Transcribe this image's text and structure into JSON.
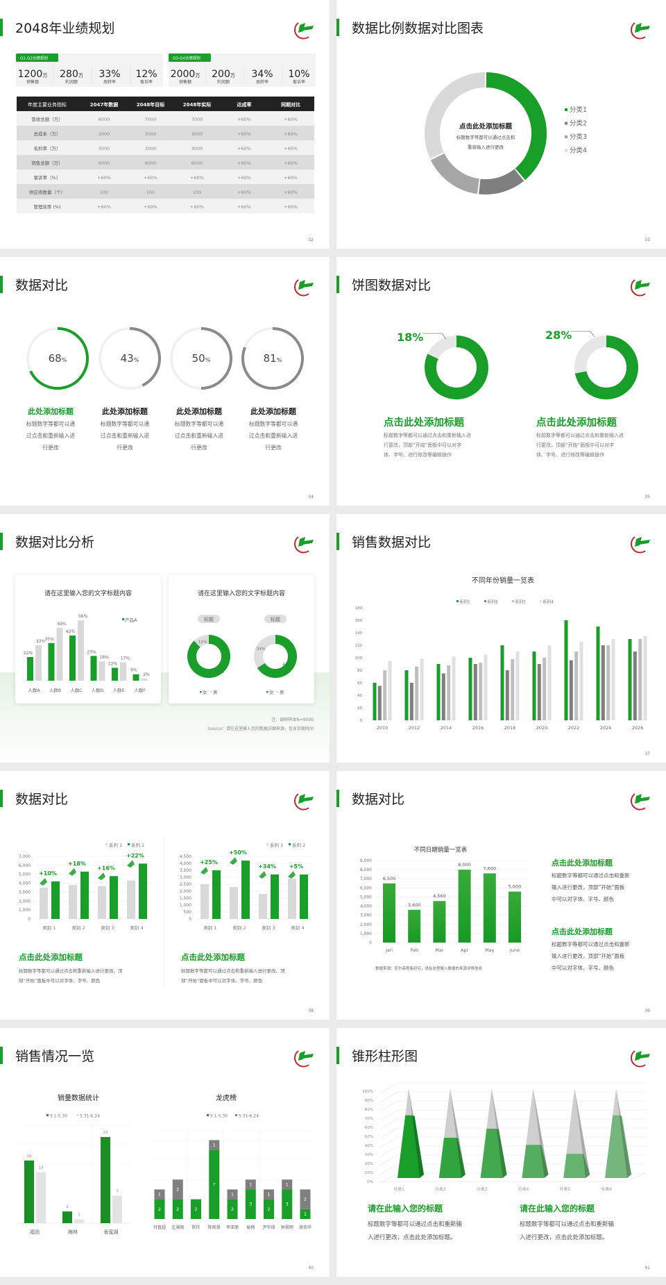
{
  "colors": {
    "green": "#1a9e2a",
    "dark_gray": "#7f7f7f",
    "mid_gray": "#a6a6a6",
    "light_gray": "#d9d9d9",
    "logo_red": "#c0272d",
    "table_header": "#222222"
  },
  "s32": {
    "title": "2048年业绩规划",
    "page": "32",
    "kpi_groups": [
      {
        "tag": "Q1-Q2业绩规划",
        "items": [
          {
            "value": "1200",
            "unit": "万",
            "label": "销售额"
          },
          {
            "value": "280",
            "unit": "万",
            "label": "利润额"
          },
          {
            "value": "33%",
            "unit": "",
            "label": "周转率"
          },
          {
            "value": "12%",
            "unit": "",
            "label": "客诉率"
          }
        ]
      },
      {
        "tag": "Q3-Q4业绩规划",
        "items": [
          {
            "value": "2000",
            "unit": "万",
            "label": "销售额"
          },
          {
            "value": "200",
            "unit": "万",
            "label": "利润额"
          },
          {
            "value": "34%",
            "unit": "",
            "label": "周转率"
          },
          {
            "value": "10%",
            "unit": "",
            "label": "客诉率"
          }
        ]
      }
    ],
    "table": {
      "headers": [
        "年度主要业务指标",
        "2047年数据",
        "2048年目标",
        "2048年实际",
        "达成率",
        "同期对比"
      ],
      "rows": [
        [
          "营收总额（万）",
          "6000",
          "7000",
          "7000",
          "+60%",
          "+60%"
        ],
        [
          "总成本（万）",
          "3000",
          "3000",
          "3000",
          "+60%",
          "+60%"
        ],
        [
          "毛利率（万）",
          "3000",
          "3000",
          "3000",
          "+60%",
          "+60%"
        ],
        [
          "销售总额（万）",
          "6000",
          "6000",
          "6000",
          "+60%",
          "+60%"
        ],
        [
          "客诉率（%）",
          "+60%",
          "+60%",
          "+60%",
          "+60%",
          "+60%"
        ],
        [
          "供应商数量（个）",
          "100",
          "100",
          "100",
          "+60%",
          "+60%"
        ],
        [
          "管理效率 (%)",
          "+60%",
          "+60%",
          "+60%",
          "+60%",
          "+60%"
        ]
      ]
    }
  },
  "s33": {
    "title": "数据比例数据对比图表",
    "page": "33",
    "center_title": "点击此处添加标题",
    "center_lines": [
      "标题数字等都可以通过点击和",
      "重新输入进行更改"
    ],
    "chart_data": {
      "type": "pie",
      "donut": true,
      "categories": [
        "分类1",
        "分类2",
        "分类3",
        "分类4"
      ],
      "values": [
        39,
        13,
        16,
        32
      ],
      "legend": "right"
    }
  },
  "s34": {
    "title": "数据对比",
    "page": "34",
    "items": [
      {
        "value": "68",
        "unit": "%",
        "percent": 68,
        "title": "此处添加标题",
        "lines": [
          "标题数字等都可以通",
          "过点击和重新输入进",
          "行更改"
        ],
        "highlight": true
      },
      {
        "value": "43",
        "unit": "%",
        "percent": 43,
        "title": "此处添加标题",
        "lines": [
          "标题数字等都可以通",
          "过点击和重新输入进",
          "行更改"
        ],
        "highlight": false
      },
      {
        "value": "50",
        "unit": "%",
        "percent": 50,
        "title": "此处添加标题",
        "lines": [
          "标题数字等都可以通",
          "过点击和重新输入进",
          "行更改"
        ],
        "highlight": false
      },
      {
        "value": "81",
        "unit": "%",
        "percent": 81,
        "title": "此处添加标题",
        "lines": [
          "标题数字等都可以通",
          "过点击和重新输入进",
          "行更改"
        ],
        "highlight": false
      }
    ]
  },
  "s35": {
    "title": "饼图数据对比",
    "page": "35",
    "items": [
      {
        "label": "18%",
        "percent": 18,
        "title": "点击此处添加标题",
        "lines": [
          "标题数字等都可以通过点击和重新输入进",
          "行更改，顶部“开始”面板中可以对字",
          "体、字号、进行修改等编辑操作"
        ]
      },
      {
        "label": "28%",
        "percent": 28,
        "title": "点击此处添加标题",
        "lines": [
          "标题数字等都可以通过点击和重新输入进",
          "行更改，顶部“开始”面板中可以对字",
          "体、字号、进行修改等编辑操作"
        ]
      }
    ]
  },
  "s36": {
    "title": "数据对比分析",
    "page": "36",
    "card_titles": [
      "请在这里输入您的文字标题内容",
      "请在这里输入您的文字标题内容"
    ],
    "chart_data": [
      {
        "type": "bar",
        "categories": [
          "人群A",
          "人群B",
          "人群C",
          "人群D",
          "人群E",
          "人群F"
        ],
        "series": [
          {
            "name": "产品A",
            "values": [
              22,
              35,
              42,
              23,
              12,
              6
            ],
            "labels": [
              "22%",
              "35%",
              "42%",
              "23%",
              "12%",
              "6%"
            ]
          },
          {
            "values": [
              33,
              49,
              56,
              18,
              17,
              2
            ],
            "labels": [
              "33%",
              "49%",
              "56%",
              "18%",
              "17%",
              "2%"
            ]
          }
        ]
      },
      {
        "type": "pie",
        "donut": true,
        "pill": "标题",
        "categories": [
          "女",
          "男"
        ],
        "values": [
          88,
          12
        ],
        "labels": [
          "88%",
          "12%"
        ]
      },
      {
        "type": "pie",
        "donut": true,
        "pill": "标题",
        "categories": [
          "女",
          "男"
        ],
        "values": [
          66,
          34
        ],
        "labels": [
          "66%",
          "34%"
        ]
      }
    ],
    "note": "注：调研样本N=9000",
    "source": "Source：请在这里输入您的数据详细来源，包含日期时间"
  },
  "s37": {
    "title": "销售数据对比",
    "page": "37",
    "chart_data": {
      "type": "bar",
      "title": "不同年份销量一览表",
      "categories": [
        "2010",
        "2012",
        "2014",
        "2016",
        "2018",
        "2020",
        "2022",
        "2024",
        "2026"
      ],
      "series": [
        {
          "name": "系列1",
          "values": [
            60,
            80,
            90,
            100,
            120,
            110,
            160,
            150,
            130
          ]
        },
        {
          "name": "系列2",
          "values": [
            55,
            60,
            75,
            90,
            80,
            90,
            96,
            120,
            110
          ]
        },
        {
          "name": "系列3",
          "values": [
            80,
            86,
            88,
            92,
            98,
            100,
            110,
            120,
            130
          ]
        },
        {
          "name": "系列4",
          "values": [
            95,
            99,
            102,
            105,
            110,
            120,
            126,
            130,
            135
          ]
        }
      ],
      "ylim": [
        0,
        180
      ],
      "yticks": [
        "0",
        "20",
        "40",
        "60",
        "80",
        "100",
        "120",
        "140",
        "160",
        "180"
      ],
      "legend": "top",
      "grid": false
    }
  },
  "s38": {
    "title": "数据对比",
    "page": "38",
    "chart_data": [
      {
        "type": "bar",
        "categories": [
          "类别 1",
          "类别 2",
          "类别 3",
          "类别 4"
        ],
        "series": [
          {
            "name": "系列 1",
            "values": [
              3500,
              3800,
              3700,
              4300
            ]
          },
          {
            "name": "系列 2",
            "values": [
              4200,
              5300,
              4800,
              6200
            ]
          }
        ],
        "growth_labels": [
          "+10%",
          "+18%",
          "+16%",
          "+22%"
        ],
        "ylim": [
          0,
          7000
        ],
        "yticks": [
          "0",
          "1,000",
          "2,000",
          "3,000",
          "4,000",
          "5,000",
          "6,000",
          "7,000"
        ],
        "legend": "top-right"
      },
      {
        "type": "bar",
        "categories": [
          "类别 1",
          "类别 2",
          "类别 3",
          "类别 4"
        ],
        "series": [
          {
            "name": "系列 1",
            "values": [
              2500,
              2300,
              1800,
              2900
            ]
          },
          {
            "name": "系列 2",
            "values": [
              3500,
              4200,
              3200,
              3200
            ]
          }
        ],
        "growth_labels": [
          "+25%",
          "+50%",
          "+34%",
          "+5%"
        ],
        "ylim": [
          0,
          4500
        ],
        "yticks": [
          "0",
          "500",
          "1,000",
          "1,500",
          "2,000",
          "2,500",
          "3,000",
          "3,500",
          "4,000",
          "4,500"
        ],
        "legend": "top-right"
      }
    ],
    "blocks": [
      {
        "title": "点击此处添加标题",
        "lines": [
          "标题数字等都可以通过点击和重新输入进行更改，顶",
          "部“开始”面板中可以对字体、字号、颜色"
        ]
      },
      {
        "title": "点击此处添加标题",
        "lines": [
          "标题数字等都可以通过点击和重新输入进行更改，顶",
          "部“开始”面板中可以对字体、字号、颜色"
        ]
      }
    ]
  },
  "s39": {
    "title": "数据对比",
    "page": "39",
    "chart_data": {
      "type": "bar",
      "title": "不同日期销量一览表",
      "categories": [
        "Jan",
        "Feb",
        "Mar",
        "Apr",
        "May",
        "June"
      ],
      "values": [
        6500,
        3600,
        4560,
        8000,
        7600,
        5600
      ],
      "labels": [
        "6,500",
        "3,600",
        "4,560",
        "8,000",
        "7,600",
        "5,600"
      ],
      "ylim": [
        0,
        9000
      ],
      "yticks": [
        "0",
        "1,000",
        "2,000",
        "3,000",
        "4,000",
        "5,000",
        "6,000",
        "7,000",
        "8,000",
        "9,000"
      ],
      "grid": true
    },
    "source": "数据来源：尼尔森零售研究，请在这里输入数据的来源详情信息",
    "blocks": [
      {
        "title": "点击此处添加标题",
        "lines": [
          "标题数字等都可以通过点击和重新",
          "输入进行更改，顶部“开始”面板",
          "中可以对字体、字号、颜色"
        ]
      },
      {
        "title": "点击此处添加标题",
        "lines": [
          "标题数字等都可以通过点击和重新",
          "输入进行更改，顶部“开始”面板",
          "中可以对字体、字号、颜色"
        ]
      }
    ]
  },
  "s40": {
    "title": "销售情况一览",
    "page": "40",
    "chart_data": [
      {
        "type": "bar",
        "title": "销量数据统计",
        "categories": [
          "福田",
          "梅林",
          "香蜜湖"
        ],
        "series": [
          {
            "name": "5.1-5.30",
            "values": [
              16,
              3,
              22
            ]
          },
          {
            "name": "5.31-6.24",
            "values": [
              13,
              1,
              7
            ]
          }
        ],
        "legend": "top"
      },
      {
        "type": "bar",
        "stacked": true,
        "title": "龙虎榜",
        "categories": [
          "付直超",
          "左湘阁",
          "陈玲",
          "陈新慧",
          "李亚丽",
          "易梅",
          "尹华绿",
          "钟慧明",
          "周伟华"
        ],
        "series": [
          {
            "name": "5.1-5.30",
            "values": [
              2,
              2,
              2,
              7,
              2,
              3,
              2,
              3,
              1
            ]
          },
          {
            "name": "5.31-6.24",
            "values": [
              1,
              2,
              0,
              1,
              1,
              1,
              1,
              1,
              2
            ]
          }
        ],
        "legend": "top"
      }
    ]
  },
  "s41": {
    "title": "锥形柱形图",
    "page": "41",
    "chart_data": {
      "type": "bar",
      "shape": "cone",
      "categories": [
        "分类1",
        "分类2",
        "分类3",
        "分类4",
        "分类5",
        "分类6"
      ],
      "values": [
        70,
        45,
        55,
        37,
        27,
        70
      ],
      "ylim": [
        0,
        100
      ],
      "yticks": [
        "0%",
        "10%",
        "20%",
        "30%",
        "40%",
        "50%",
        "60%",
        "70%",
        "80%",
        "90%",
        "100%"
      ]
    },
    "blocks": [
      {
        "title": "请在此输入您的标题",
        "lines": [
          "标题数字等都可以通过点击和重新输",
          "入进行更改，点击此处添加标题。"
        ]
      },
      {
        "title": "请在此输入您的标题",
        "lines": [
          "标题数字等都可以通过点击和重新输",
          "入进行更改，点击此处添加标题。"
        ]
      }
    ]
  }
}
